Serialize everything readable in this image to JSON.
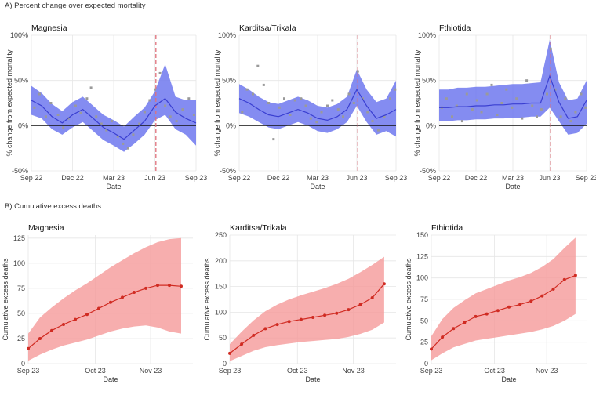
{
  "section_a_title": "A) Percent change over expected mortality",
  "section_b_title": "B) Cumulative excess deaths",
  "colors": {
    "blue_line": "#3a3fd1",
    "blue_band": "#6f78ee",
    "red_line": "#d02b22",
    "red_band": "#f59a9a",
    "event_line": "#e0707a",
    "points": "#9a9a9a",
    "grid": "#e6e6e6"
  },
  "chart_data": [
    {
      "type": "line",
      "title": "Magnesia",
      "xlabel": "Date",
      "ylabel": "% change from expected mortality",
      "x_ticks": [
        "Sep 22",
        "Dec 22",
        "Mar 23",
        "Jun 23",
        "Sep 23"
      ],
      "x_range": [
        0,
        16
      ],
      "y_ticks": [
        "-50%",
        "0%",
        "50%",
        "100%"
      ],
      "ylim": [
        -50,
        100
      ],
      "event_x": 12.1,
      "x": [
        0,
        1,
        2,
        3,
        4,
        5,
        6,
        7,
        8,
        9,
        10,
        11,
        12,
        13,
        14,
        15,
        16
      ],
      "fit": [
        28,
        22,
        10,
        3,
        12,
        18,
        8,
        -2,
        -8,
        -15,
        -5,
        5,
        22,
        30,
        15,
        8,
        3
      ],
      "lower": [
        12,
        8,
        -4,
        -10,
        -2,
        4,
        -6,
        -16,
        -22,
        -29,
        -20,
        -10,
        6,
        12,
        -4,
        -10,
        -22
      ],
      "upper": [
        44,
        36,
        24,
        16,
        26,
        32,
        22,
        12,
        6,
        -1,
        10,
        20,
        38,
        68,
        32,
        28,
        28
      ],
      "points": [
        [
          0.3,
          20
        ],
        [
          0.8,
          35
        ],
        [
          1.4,
          10
        ],
        [
          1.9,
          25
        ],
        [
          2.6,
          12
        ],
        [
          3.1,
          -2
        ],
        [
          3.6,
          8
        ],
        [
          4.3,
          22
        ],
        [
          4.8,
          14
        ],
        [
          5.4,
          30
        ],
        [
          5.8,
          42
        ],
        [
          6.3,
          10
        ],
        [
          6.8,
          2
        ],
        [
          7.3,
          -5
        ],
        [
          7.8,
          5
        ],
        [
          8.4,
          -12
        ],
        [
          8.9,
          -20
        ],
        [
          9.4,
          -25
        ],
        [
          9.9,
          -10
        ],
        [
          10.5,
          2
        ],
        [
          11.0,
          15
        ],
        [
          11.5,
          28
        ],
        [
          12.0,
          40
        ],
        [
          12.5,
          58
        ],
        [
          13.0,
          22
        ],
        [
          13.5,
          10
        ],
        [
          14.1,
          5
        ],
        [
          14.7,
          18
        ],
        [
          15.3,
          30
        ],
        [
          15.8,
          12
        ]
      ]
    },
    {
      "type": "line",
      "title": "Karditsa/Trikala",
      "xlabel": "Date",
      "ylabel": "% change from expected mortality",
      "x_ticks": [
        "Sep 22",
        "Dec 22",
        "Mar 23",
        "Jun 23",
        "Sep 23"
      ],
      "x_range": [
        0,
        16
      ],
      "y_ticks": [
        "-50%",
        "0%",
        "50%",
        "100%"
      ],
      "ylim": [
        -50,
        100
      ],
      "event_x": 12.1,
      "x": [
        0,
        1,
        2,
        3,
        4,
        5,
        6,
        7,
        8,
        9,
        10,
        11,
        12,
        13,
        14,
        15,
        16
      ],
      "fit": [
        30,
        25,
        18,
        12,
        10,
        14,
        18,
        14,
        8,
        6,
        10,
        18,
        40,
        22,
        8,
        12,
        18
      ],
      "lower": [
        14,
        10,
        4,
        -2,
        -4,
        0,
        4,
        0,
        -6,
        -8,
        -4,
        4,
        22,
        4,
        -10,
        -6,
        -12
      ],
      "upper": [
        46,
        40,
        32,
        26,
        24,
        28,
        32,
        28,
        22,
        20,
        24,
        32,
        62,
        40,
        26,
        30,
        50
      ],
      "points": [
        [
          0.3,
          15
        ],
        [
          0.8,
          40
        ],
        [
          1.4,
          35
        ],
        [
          1.9,
          66
        ],
        [
          2.5,
          45
        ],
        [
          3.0,
          25
        ],
        [
          3.5,
          -15
        ],
        [
          4.1,
          20
        ],
        [
          4.6,
          30
        ],
        [
          5.2,
          12
        ],
        [
          5.7,
          28
        ],
        [
          6.3,
          30
        ],
        [
          6.8,
          22
        ],
        [
          7.3,
          8
        ],
        [
          7.9,
          4
        ],
        [
          8.4,
          15
        ],
        [
          9.0,
          22
        ],
        [
          9.5,
          28
        ],
        [
          10.1,
          18
        ],
        [
          10.6,
          10
        ],
        [
          11.2,
          35
        ],
        [
          11.7,
          25
        ],
        [
          12.1,
          60
        ],
        [
          12.6,
          30
        ],
        [
          13.1,
          15
        ],
        [
          13.6,
          5
        ],
        [
          14.2,
          -5
        ],
        [
          14.8,
          10
        ],
        [
          15.4,
          30
        ],
        [
          15.9,
          40
        ]
      ]
    },
    {
      "type": "line",
      "title": "Fthiotida",
      "xlabel": "Date",
      "ylabel": "% change from expected mortality",
      "x_ticks": [
        "Sep 22",
        "Dec 22",
        "Mar 23",
        "Jun 23",
        "Sep 23"
      ],
      "x_range": [
        0,
        16
      ],
      "y_ticks": [
        "-50%",
        "0%",
        "50%",
        "100%"
      ],
      "ylim": [
        -50,
        100
      ],
      "event_x": 12.1,
      "x": [
        0,
        1,
        2,
        3,
        4,
        5,
        6,
        7,
        8,
        9,
        10,
        11,
        12,
        13,
        14,
        15,
        16
      ],
      "fit": [
        20,
        20,
        21,
        21,
        22,
        22,
        23,
        23,
        24,
        24,
        25,
        25,
        55,
        26,
        8,
        10,
        28
      ],
      "lower": [
        5,
        5,
        6,
        6,
        7,
        7,
        8,
        8,
        9,
        9,
        10,
        10,
        20,
        5,
        -10,
        -8,
        2
      ],
      "upper": [
        40,
        40,
        42,
        42,
        43,
        43,
        44,
        45,
        46,
        46,
        47,
        48,
        95,
        48,
        28,
        30,
        50
      ],
      "points": [
        [
          0.3,
          20
        ],
        [
          0.8,
          30
        ],
        [
          1.4,
          10
        ],
        [
          1.9,
          22
        ],
        [
          2.5,
          5
        ],
        [
          3.0,
          35
        ],
        [
          3.6,
          18
        ],
        [
          4.1,
          28
        ],
        [
          4.6,
          15
        ],
        [
          5.2,
          35
        ],
        [
          5.7,
          45
        ],
        [
          6.3,
          12
        ],
        [
          6.8,
          25
        ],
        [
          7.3,
          40
        ],
        [
          7.9,
          20
        ],
        [
          8.4,
          30
        ],
        [
          9.0,
          8
        ],
        [
          9.5,
          50
        ],
        [
          10.1,
          22
        ],
        [
          10.6,
          10
        ],
        [
          11.1,
          18
        ],
        [
          11.7,
          35
        ],
        [
          12.1,
          85
        ],
        [
          12.6,
          40
        ],
        [
          13.2,
          10
        ],
        [
          13.7,
          30
        ],
        [
          14.3,
          5
        ],
        [
          14.8,
          15
        ],
        [
          15.4,
          35
        ],
        [
          15.9,
          20
        ]
      ]
    },
    {
      "type": "line",
      "title": "Magnesia",
      "xlabel": "Date",
      "ylabel": "Cumulative excess deaths",
      "x_ticks": [
        "Sep 23",
        "Oct 23",
        "Nov 23"
      ],
      "x_range": [
        0,
        14
      ],
      "y_ticks": [
        "0",
        "25",
        "50",
        "75",
        "100",
        "125"
      ],
      "ylim": [
        0,
        128
      ],
      "x": [
        0,
        1,
        2,
        3,
        4,
        5,
        6,
        7,
        8,
        9,
        10,
        11,
        12,
        13
      ],
      "values": [
        15,
        25,
        33,
        39,
        44,
        49,
        55,
        61,
        66,
        71,
        75,
        78,
        78,
        77
      ],
      "lower": [
        3,
        9,
        14,
        18,
        21,
        24,
        28,
        32,
        35,
        37,
        38,
        36,
        32,
        30
      ],
      "upper": [
        30,
        46,
        56,
        65,
        73,
        80,
        88,
        96,
        103,
        110,
        116,
        121,
        124,
        125
      ]
    },
    {
      "type": "line",
      "title": "Karditsa/Trikala",
      "xlabel": "Date",
      "ylabel": "Cumulative excess deaths",
      "x_ticks": [
        "Sep 23",
        "Oct 23",
        "Nov 23"
      ],
      "x_range": [
        0,
        14
      ],
      "y_ticks": [
        "0",
        "50",
        "100",
        "150",
        "200",
        "250"
      ],
      "ylim": [
        0,
        250
      ],
      "x": [
        0,
        1,
        2,
        3,
        4,
        5,
        6,
        7,
        8,
        9,
        10,
        11,
        12,
        13
      ],
      "values": [
        20,
        38,
        55,
        68,
        76,
        82,
        86,
        90,
        94,
        98,
        105,
        115,
        128,
        155
      ],
      "lower": [
        5,
        15,
        25,
        32,
        36,
        39,
        42,
        44,
        46,
        48,
        52,
        58,
        66,
        80
      ],
      "upper": [
        38,
        62,
        84,
        102,
        115,
        125,
        133,
        140,
        147,
        155,
        165,
        178,
        192,
        208
      ]
    },
    {
      "type": "line",
      "title": "Fthiotida",
      "xlabel": "Date",
      "ylabel": "Cumulative excess deaths",
      "x_ticks": [
        "Sep 23",
        "Oct 23",
        "Nov 23"
      ],
      "x_range": [
        0,
        14
      ],
      "y_ticks": [
        "0",
        "25",
        "50",
        "75",
        "100",
        "125",
        "150"
      ],
      "ylim": [
        0,
        150
      ],
      "x": [
        0,
        1,
        2,
        3,
        4,
        5,
        6,
        7,
        8,
        9,
        10,
        11,
        12,
        13
      ],
      "values": [
        17,
        31,
        41,
        48,
        55,
        58,
        62,
        66,
        69,
        73,
        79,
        87,
        98,
        103
      ],
      "lower": [
        4,
        12,
        19,
        23,
        27,
        29,
        31,
        33,
        35,
        37,
        40,
        44,
        50,
        58
      ],
      "upper": [
        32,
        52,
        65,
        74,
        82,
        87,
        92,
        97,
        101,
        106,
        113,
        122,
        135,
        147
      ]
    }
  ]
}
